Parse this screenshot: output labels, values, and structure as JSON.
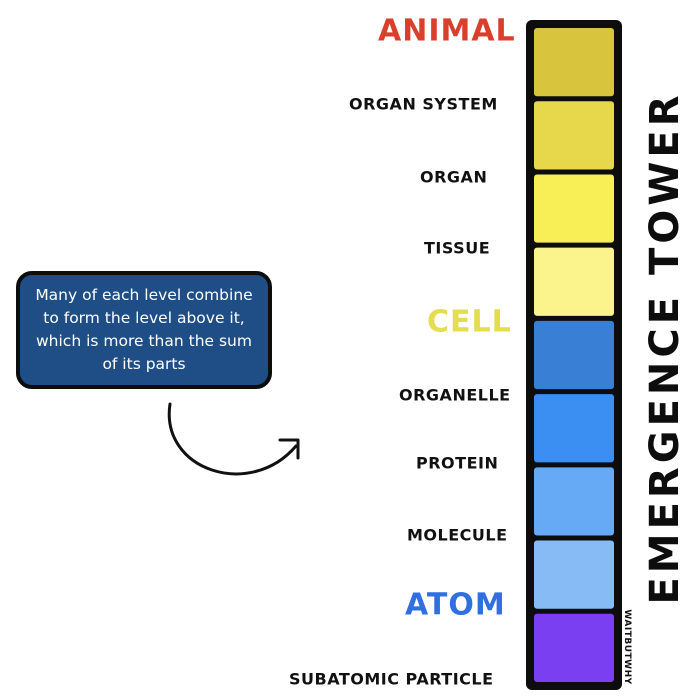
{
  "title": "EMERGENCE TOWER",
  "watermark": "WAITBUTWHY",
  "callout": "Many of each level combine to form the level above it, which is more than the sum of its parts",
  "colors": {
    "animal": "#d9402c",
    "cell": "#e4dd50",
    "atom": "#2f6fe0",
    "callout_bg": "#1f4e86",
    "outline": "#0d0d0d"
  },
  "levels": [
    {
      "key": "animal",
      "label": "ANIMAL",
      "major": true,
      "color": "#d9402c"
    },
    {
      "key": "organ_system",
      "label": "ORGAN SYSTEM",
      "major": false,
      "block_color": "#d9c53d"
    },
    {
      "key": "organ",
      "label": "ORGAN",
      "major": false,
      "block_color": "#e6d84a"
    },
    {
      "key": "tissue",
      "label": "TISSUE",
      "major": false,
      "block_color": "#f7ef55"
    },
    {
      "key": "cell_blk",
      "label": "",
      "major": false,
      "block_color": "#fbf38c"
    },
    {
      "key": "cell",
      "label": "CELL",
      "major": true,
      "color": "#e4dd50"
    },
    {
      "key": "organelle",
      "label": "ORGANELLE",
      "major": false,
      "block_color": "#3a7fd6"
    },
    {
      "key": "protein",
      "label": "PROTEIN",
      "major": false,
      "block_color": "#3b8ff2"
    },
    {
      "key": "molecule",
      "label": "MOLECULE",
      "major": false,
      "block_color": "#66a9f4"
    },
    {
      "key": "atom_blk",
      "label": "",
      "major": false,
      "block_color": "#86bbf6"
    },
    {
      "key": "atom",
      "label": "ATOM",
      "major": true,
      "color": "#2f6fe0"
    },
    {
      "key": "subatomic",
      "label": "SUBATOMIC PARTICLE",
      "major": false,
      "block_color": "#7b3ff2"
    }
  ],
  "labels": {
    "animal": "ANIMAL",
    "organ_system": "ORGAN SYSTEM",
    "organ": "ORGAN",
    "tissue": "TISSUE",
    "cell": "CELL",
    "organelle": "ORGANELLE",
    "protein": "PROTEIN",
    "molecule": "MOLECULE",
    "atom": "ATOM",
    "subatomic": "SUBATOMIC PARTICLE"
  },
  "blocks": [
    {
      "name": "block-organ-system",
      "color": "#d9c53d"
    },
    {
      "name": "block-organ",
      "color": "#e6d84a"
    },
    {
      "name": "block-tissue",
      "color": "#f7ef55"
    },
    {
      "name": "block-cell",
      "color": "#fbf38c"
    },
    {
      "name": "block-organelle",
      "color": "#3a7fd6"
    },
    {
      "name": "block-protein",
      "color": "#3b8ff2"
    },
    {
      "name": "block-molecule",
      "color": "#66a9f4"
    },
    {
      "name": "block-atom",
      "color": "#86bbf6"
    },
    {
      "name": "block-subatomic",
      "color": "#7b3ff2"
    }
  ]
}
